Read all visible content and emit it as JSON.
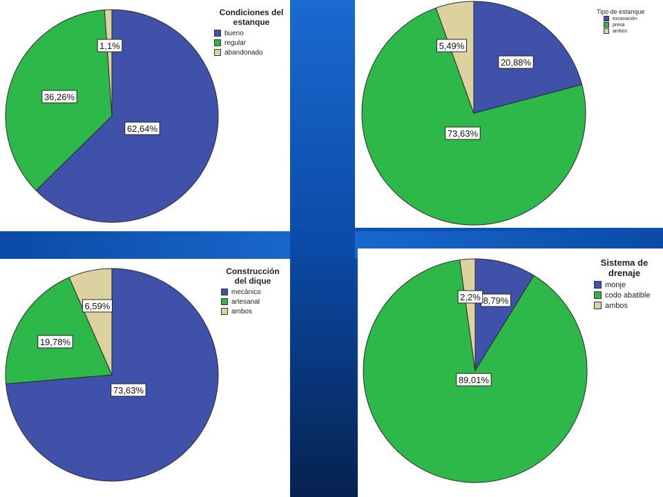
{
  "colors": {
    "blue": "#3f51a8",
    "green": "#2fb84a",
    "tan": "#dcd2a0"
  },
  "chart_data": [
    {
      "type": "pie",
      "title": "Condiciones del estanque",
      "categories": [
        "bueno",
        "regular",
        "abandonado"
      ],
      "values": [
        62.64,
        36.26,
        1.1
      ],
      "data_labels": [
        "62,64%",
        "36,26%",
        "1,1%"
      ],
      "legend": "top-right"
    },
    {
      "type": "pie",
      "title": "Tipo de estanque",
      "categories": [
        "excavación",
        "presa",
        "ambos"
      ],
      "values": [
        20.88,
        73.63,
        5.49
      ],
      "data_labels": [
        "20,88%",
        "73,63%",
        "5,49%"
      ],
      "legend": "top-right"
    },
    {
      "type": "pie",
      "title": "Construcción del dique",
      "categories": [
        "mecánico",
        "artesanal",
        "ambos"
      ],
      "values": [
        73.63,
        19.78,
        6.59
      ],
      "data_labels": [
        "73,63%",
        "19,78%",
        "6,59%"
      ],
      "legend": "top-right"
    },
    {
      "type": "pie",
      "title": "Sistema de drenaje",
      "categories": [
        "monje",
        "codo abatible",
        "ambos"
      ],
      "values": [
        8.79,
        89.01,
        2.2
      ],
      "data_labels": [
        "8,79%",
        "89,01%",
        "2,2%"
      ],
      "legend": "top-right"
    }
  ]
}
